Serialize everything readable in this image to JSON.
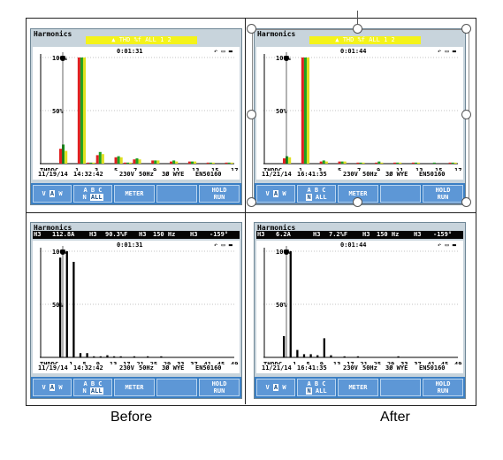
{
  "screens": [
    {
      "id": "before-thd",
      "title": "Harmonics",
      "top_bar": "▲ THD  %f ALL  1 2",
      "time": "0:01:31",
      "status_icons": "↶  ▭ ▬",
      "y_labels": [
        "100%",
        "50%"
      ],
      "x_labels": [
        "THDDC",
        "1",
        "3",
        "5",
        "7",
        "9",
        "11",
        "13",
        "15",
        "17"
      ],
      "date": "11/19/14",
      "clock": "14:32:42",
      "mains": "230V",
      "freq": "50Hz",
      "config": "3Ø WYE",
      "standard": "EN50160",
      "softkeys": {
        "vaw_v": "V",
        "vaw_a": "A",
        "vaw_w": "W",
        "abc_top": "A  B  C",
        "abc_n": "N",
        "abc_all": "ALL",
        "meter": "METER",
        "hold": "HOLD",
        "run": "RUN"
      },
      "chart_data": {
        "type": "bar",
        "categories": [
          "THD",
          "DC",
          "1",
          "2",
          "3",
          "4",
          "5",
          "6",
          "7",
          "8",
          "9",
          "10",
          "11",
          "12",
          "13",
          "14",
          "15",
          "16",
          "17"
        ],
        "series": [
          {
            "color": "#e02020",
            "values": [
              14,
              0,
              100,
              1,
              8,
              0,
              6,
              1,
              4,
              0,
              3,
              0,
              2,
              0,
              2,
              0,
              1,
              0,
              1
            ]
          },
          {
            "color": "#20a020",
            "values": [
              18,
              0,
              100,
              1,
              11,
              0,
              7,
              1,
              5,
              0,
              3,
              0,
              3,
              0,
              2,
              0,
              1,
              0,
              1
            ]
          },
          {
            "color": "#e0e020",
            "values": [
              12,
              0,
              100,
              1,
              9,
              0,
              6,
              1,
              4,
              0,
              3,
              0,
              2,
              0,
              2,
              0,
              1,
              0,
              1
            ]
          }
        ],
        "ylim": [
          0,
          100
        ]
      }
    },
    {
      "id": "after-thd",
      "title": "Harmonics",
      "top_bar": "▲ THD  %f ALL  1 2",
      "time": "0:01:44",
      "status_icons": "↶  ▭ ▬",
      "y_labels": [
        "100%",
        "50%"
      ],
      "x_labels": [
        "THDDC",
        "1",
        "3",
        "5",
        "7",
        "9",
        "11",
        "13",
        "15",
        "17"
      ],
      "date": "11/21/14",
      "clock": "16:41:35",
      "mains": "230V",
      "freq": "50Hz",
      "config": "3Ø WYE",
      "standard": "EN50160",
      "softkeys": {
        "vaw_v": "V",
        "vaw_a": "A",
        "vaw_w": "W",
        "abc_top": "A  B  C",
        "abc_n": "N",
        "abc_all": "ALL",
        "meter": "METER",
        "hold": "HOLD",
        "run": "RUN"
      },
      "chart_data": {
        "type": "bar",
        "categories": [
          "THD",
          "DC",
          "1",
          "2",
          "3",
          "4",
          "5",
          "6",
          "7",
          "8",
          "9",
          "10",
          "11",
          "12",
          "13",
          "14",
          "15",
          "16",
          "17"
        ],
        "series": [
          {
            "color": "#e02020",
            "values": [
              5,
              0,
              100,
              0,
              2,
              0,
              2,
              0,
              1,
              0,
              1,
              0,
              1,
              0,
              1,
              0,
              0,
              0,
              1
            ]
          },
          {
            "color": "#20a020",
            "values": [
              7,
              0,
              100,
              0,
              3,
              0,
              2,
              0,
              1,
              0,
              2,
              0,
              1,
              0,
              1,
              0,
              1,
              0,
              1
            ]
          },
          {
            "color": "#e0e020",
            "values": [
              6,
              0,
              100,
              0,
              2,
              0,
              2,
              0,
              1,
              0,
              1,
              0,
              1,
              0,
              1,
              0,
              0,
              0,
              1
            ]
          }
        ],
        "ylim": [
          0,
          100
        ]
      }
    },
    {
      "id": "before-spectrum",
      "title": "Harmonics",
      "readout": {
        "h": "H3",
        "amps": "112.8A",
        "f1": "H3",
        "pct": "90.3%F",
        "f2": "H3",
        "hz": "150 Hz",
        "f3": "H3",
        "deg": "-159°"
      },
      "time": "0:01:31",
      "status_icons": "↶  ▭ ▬",
      "y_labels": [
        "100%",
        "50%"
      ],
      "x_labels": [
        "THDDC",
        "1",
        "5",
        "9",
        "13",
        "17",
        "21",
        "25",
        "29",
        "33",
        "37",
        "41",
        "45",
        "49"
      ],
      "date": "11/19/14",
      "clock": "14:32:42",
      "mains": "230V",
      "freq": "50Hz",
      "config": "3Ø WYE",
      "standard": "EN50160",
      "softkeys": {
        "vaw_v": "V",
        "vaw_a": "A",
        "vaw_w": "W",
        "abc_top": "A  B  C",
        "abc_n": "N",
        "abc_all": "ALL",
        "meter": "METER",
        "hold": "HOLD",
        "run": "RUN"
      },
      "chart_data": {
        "type": "bar",
        "categories": [
          "THD",
          "DC",
          "1",
          "2",
          "3",
          "4",
          "5",
          "6",
          "7",
          "8",
          "9",
          "10",
          "11",
          "12",
          "13",
          "14",
          "15",
          "16",
          "17",
          "18",
          "19",
          "20",
          "21",
          "22",
          "23",
          "24",
          "25",
          "26",
          "27",
          "28",
          "29",
          "30",
          "31",
          "32",
          "33",
          "34",
          "35",
          "36",
          "37",
          "38",
          "39",
          "40",
          "41",
          "42",
          "43",
          "44",
          "45",
          "46",
          "47",
          "48",
          "49",
          "50"
        ],
        "values": [
          94,
          0,
          100,
          0,
          90,
          0,
          4,
          0,
          4,
          0,
          1,
          0,
          1,
          0,
          2,
          0,
          1,
          0,
          1,
          0,
          0,
          0,
          1,
          0,
          0,
          0,
          1,
          0,
          0,
          0,
          1,
          0,
          0,
          0,
          0,
          0,
          0,
          0,
          0,
          0,
          0,
          0,
          0,
          0,
          0,
          0,
          0,
          0,
          0,
          0,
          0,
          0
        ],
        "ylim": [
          0,
          100
        ]
      }
    },
    {
      "id": "after-spectrum",
      "title": "Harmonics",
      "readout": {
        "h": "H3",
        "amps": "6.2A",
        "f1": "H3",
        "pct": "7.2%F",
        "f2": "H3",
        "hz": "150 Hz",
        "f3": "H3",
        "deg": "-159°"
      },
      "time": "0:01:44",
      "status_icons": "↶  ▭ ▬",
      "y_labels": [
        "100%",
        "50%"
      ],
      "x_labels": [
        "THDDC",
        "1",
        "5",
        "9",
        "13",
        "17",
        "21",
        "25",
        "29",
        "33",
        "37",
        "41",
        "45",
        "49"
      ],
      "date": "11/21/14",
      "clock": "16:41:35",
      "mains": "230V",
      "freq": "50Hz",
      "config": "3Ø WYE",
      "standard": "EN50160",
      "softkeys": {
        "vaw_v": "V",
        "vaw_a": "A",
        "vaw_w": "W",
        "abc_top": "A  B  C",
        "abc_n": "N",
        "abc_all": "ALL",
        "meter": "METER",
        "hold": "HOLD",
        "run": "RUN"
      },
      "chart_data": {
        "type": "bar",
        "categories": [
          "THD",
          "DC",
          "1",
          "2",
          "3",
          "4",
          "5",
          "6",
          "7",
          "8",
          "9",
          "10",
          "11",
          "12",
          "13",
          "14",
          "15",
          "16",
          "17",
          "18",
          "19",
          "20",
          "21",
          "22",
          "23",
          "24",
          "25",
          "26",
          "27",
          "28",
          "29",
          "30",
          "31",
          "32",
          "33",
          "34",
          "35",
          "36",
          "37",
          "38",
          "39",
          "40",
          "41",
          "42",
          "43",
          "44",
          "45",
          "46",
          "47",
          "48",
          "49",
          "50"
        ],
        "values": [
          20,
          0,
          100,
          0,
          7,
          0,
          3,
          0,
          3,
          0,
          2,
          0,
          18,
          0,
          2,
          0,
          0,
          0,
          1,
          0,
          0,
          0,
          1,
          0,
          0,
          0,
          0,
          0,
          0,
          0,
          0,
          0,
          0,
          0,
          1,
          0,
          0,
          0,
          0,
          0,
          0,
          0,
          0,
          0,
          0,
          0,
          0,
          0,
          0,
          0,
          0,
          0
        ],
        "ylim": [
          0,
          100
        ]
      }
    }
  ],
  "captions": {
    "before": "Before",
    "after": "After"
  }
}
